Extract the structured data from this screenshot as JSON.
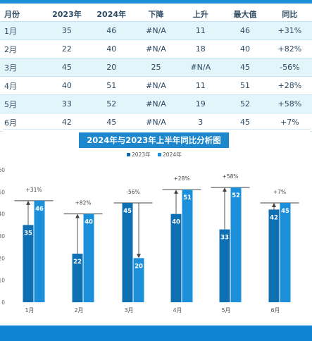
{
  "table": {
    "headers": [
      "月份",
      "2023年",
      "2024年",
      "下降",
      "上升",
      "最大值",
      "同比"
    ],
    "rows": [
      [
        "1月",
        "35",
        "46",
        "#N/A",
        "11",
        "46",
        "+31%"
      ],
      [
        "2月",
        "22",
        "40",
        "#N/A",
        "18",
        "40",
        "+82%"
      ],
      [
        "3月",
        "45",
        "20",
        "25",
        "#N/A",
        "45",
        "-56%"
      ],
      [
        "4月",
        "40",
        "51",
        "#N/A",
        "11",
        "51",
        "+28%"
      ],
      [
        "5月",
        "33",
        "52",
        "#N/A",
        "19",
        "52",
        "+58%"
      ],
      [
        "6月",
        "42",
        "45",
        "#N/A",
        "3",
        "45",
        "+7%"
      ]
    ]
  },
  "chart_data": {
    "type": "bar",
    "title": "2024年与2023年上半年同比分析图",
    "categories": [
      "1月",
      "2月",
      "3月",
      "4月",
      "5月",
      "6月"
    ],
    "series": [
      {
        "name": "2023年",
        "values": [
          35,
          22,
          45,
          40,
          33,
          42
        ],
        "color": "#0f6fb3"
      },
      {
        "name": "2024年",
        "values": [
          46,
          40,
          20,
          51,
          52,
          45
        ],
        "color": "#1b8fd9"
      }
    ],
    "yoy_labels": [
      "+31%",
      "+82%",
      "-56%",
      "+28%",
      "+58%",
      "+7%"
    ],
    "ylim": [
      0,
      60
    ],
    "yticks": [
      "0",
      "10",
      "20",
      "30",
      "40",
      "50",
      "60"
    ],
    "legend_position": "top-center",
    "grid": false
  },
  "colors": {
    "accent": "#1e8fd6",
    "row_alt": "#e2f5fb",
    "series_2023": "#0f6fb3",
    "series_2024": "#1b8fd9"
  }
}
